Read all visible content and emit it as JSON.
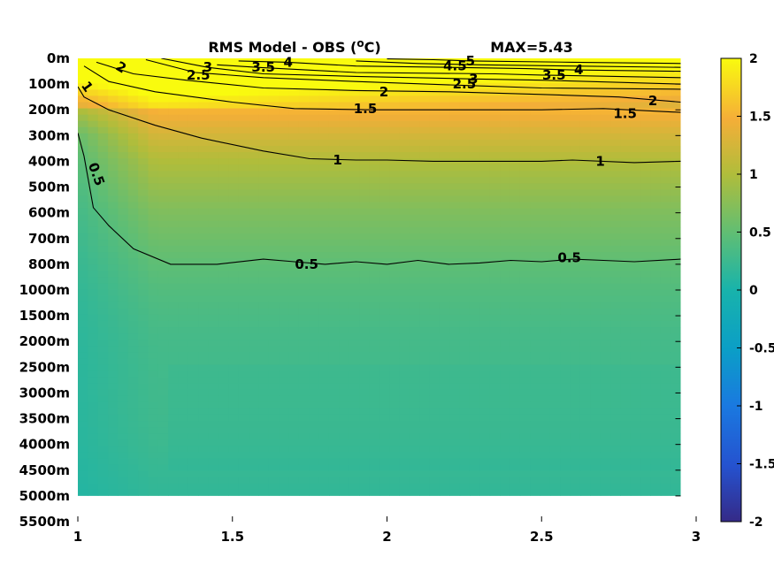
{
  "chart_data": {
    "type": "heatmap",
    "title": "RMS Model - OBS (",
    "title_sup": "o",
    "title_unit": "C)",
    "max_label": "MAX=5.43",
    "x_ticks": [
      "1",
      "1.5",
      "2",
      "2.5",
      "3"
    ],
    "x_tick_values": [
      1,
      1.5,
      2,
      2.5,
      3
    ],
    "xlim": [
      1,
      3
    ],
    "x_data_range": [
      1,
      2.95
    ],
    "y_ticks": [
      "0m",
      "100m",
      "200m",
      "300m",
      "400m",
      "500m",
      "600m",
      "700m",
      "800m",
      "1000m",
      "1500m",
      "2000m",
      "2500m",
      "3000m",
      "3500m",
      "4000m",
      "4500m",
      "5000m",
      "5500m"
    ],
    "y_data_range_index": [
      0,
      17
    ],
    "colorbar": {
      "ticks": [
        "2",
        "1.5",
        "1",
        "0.5",
        "0",
        "-0.5",
        "-1",
        "-1.5",
        "-2"
      ],
      "tick_values": [
        2,
        1.5,
        1,
        0.5,
        0,
        -0.5,
        -1,
        -1.5,
        -2
      ],
      "range": [
        -2,
        2
      ],
      "colormap": "parula"
    },
    "contours": [
      {
        "level": "0.5",
        "points": [
          [
            1,
            2.9
          ],
          [
            1.02,
            3.8
          ],
          [
            1.05,
            5.8
          ],
          [
            1.1,
            6.5
          ],
          [
            1.18,
            7.4
          ],
          [
            1.3,
            8.0
          ],
          [
            1.45,
            8.0
          ],
          [
            1.6,
            7.8
          ],
          [
            1.7,
            7.9
          ],
          [
            1.8,
            8.0
          ],
          [
            1.9,
            7.9
          ],
          [
            2.0,
            8.0
          ],
          [
            2.1,
            7.85
          ],
          [
            2.2,
            8.0
          ],
          [
            2.3,
            7.95
          ],
          [
            2.4,
            7.85
          ],
          [
            2.5,
            7.9
          ],
          [
            2.6,
            7.8
          ],
          [
            2.7,
            7.85
          ],
          [
            2.8,
            7.9
          ],
          [
            2.95,
            7.8
          ]
        ],
        "labels": [
          [
            1.06,
            4.5,
            "0.5",
            70
          ],
          [
            1.74,
            8.0,
            "0.5",
            0
          ],
          [
            2.59,
            7.75,
            "0.5",
            0
          ]
        ]
      },
      {
        "level": "1",
        "points": [
          [
            1,
            1.1
          ],
          [
            1.02,
            1.5
          ],
          [
            1.1,
            2.0
          ],
          [
            1.25,
            2.6
          ],
          [
            1.4,
            3.1
          ],
          [
            1.6,
            3.6
          ],
          [
            1.75,
            3.9
          ],
          [
            1.9,
            3.95
          ],
          [
            2.0,
            3.95
          ],
          [
            2.15,
            4.0
          ],
          [
            2.3,
            4.0
          ],
          [
            2.5,
            4.0
          ],
          [
            2.6,
            3.95
          ],
          [
            2.8,
            4.05
          ],
          [
            2.95,
            4.0
          ]
        ],
        "labels": [
          [
            1.03,
            1.1,
            "1",
            55
          ],
          [
            1.84,
            3.95,
            "1",
            0
          ],
          [
            2.69,
            4.0,
            "1",
            0
          ]
        ]
      },
      {
        "level": "1.5",
        "points": [
          [
            1.02,
            0.3
          ],
          [
            1.1,
            0.9
          ],
          [
            1.25,
            1.3
          ],
          [
            1.5,
            1.7
          ],
          [
            1.7,
            1.95
          ],
          [
            1.95,
            2.0
          ],
          [
            2.2,
            2.0
          ],
          [
            2.5,
            2.0
          ],
          [
            2.7,
            1.95
          ],
          [
            2.95,
            2.1
          ]
        ],
        "labels": [
          [
            1.93,
            1.95,
            "1.5",
            0
          ],
          [
            2.77,
            2.15,
            "1.5",
            0
          ]
        ]
      },
      {
        "level": "2",
        "points": [
          [
            1.06,
            0.15
          ],
          [
            1.18,
            0.6
          ],
          [
            1.35,
            0.85
          ],
          [
            1.6,
            1.15
          ],
          [
            1.9,
            1.25
          ],
          [
            2.2,
            1.3
          ],
          [
            2.5,
            1.4
          ],
          [
            2.75,
            1.5
          ],
          [
            2.95,
            1.7
          ]
        ],
        "labels": [
          [
            1.14,
            0.35,
            "2",
            30
          ],
          [
            1.99,
            1.3,
            "2",
            0
          ],
          [
            2.86,
            1.65,
            "2",
            0
          ]
        ]
      },
      {
        "level": "2.5",
        "points": [
          [
            1.22,
            0.05
          ],
          [
            1.38,
            0.55
          ],
          [
            1.6,
            0.75
          ],
          [
            1.9,
            0.9
          ],
          [
            2.25,
            1.05
          ],
          [
            2.5,
            1.15
          ],
          [
            2.95,
            1.2
          ]
        ],
        "labels": [
          [
            1.39,
            0.65,
            "2.5",
            0
          ],
          [
            2.25,
            1.0,
            "2.5",
            0
          ]
        ]
      },
      {
        "level": "3",
        "points": [
          [
            1.27,
            0.0
          ],
          [
            1.42,
            0.35
          ],
          [
            1.6,
            0.6
          ],
          [
            1.9,
            0.7
          ],
          [
            2.28,
            0.8
          ],
          [
            2.5,
            0.85
          ],
          [
            2.95,
            1.0
          ]
        ],
        "labels": [
          [
            1.42,
            0.35,
            "3",
            0
          ],
          [
            2.28,
            0.8,
            "3",
            0
          ]
        ]
      },
      {
        "level": "3.5",
        "points": [
          [
            1.45,
            0.25
          ],
          [
            1.58,
            0.35
          ],
          [
            1.9,
            0.55
          ],
          [
            2.35,
            0.6
          ],
          [
            2.5,
            0.65
          ],
          [
            2.95,
            0.75
          ]
        ],
        "labels": [
          [
            1.6,
            0.35,
            "3.5",
            0
          ],
          [
            2.54,
            0.65,
            "3.5",
            0
          ]
        ]
      },
      {
        "level": "4",
        "points": [
          [
            1.52,
            0.1
          ],
          [
            1.68,
            0.15
          ],
          [
            1.9,
            0.3
          ],
          [
            2.2,
            0.35
          ],
          [
            2.45,
            0.4
          ],
          [
            2.6,
            0.45
          ],
          [
            2.95,
            0.5
          ]
        ],
        "labels": [
          [
            1.68,
            0.15,
            "4",
            0
          ],
          [
            2.62,
            0.45,
            "4",
            0
          ]
        ]
      },
      {
        "level": "4.5",
        "points": [
          [
            1.9,
            0.1
          ],
          [
            2.1,
            0.2
          ],
          [
            2.3,
            0.25
          ],
          [
            2.6,
            0.3
          ],
          [
            2.95,
            0.35
          ]
        ],
        "labels": [
          [
            2.22,
            0.3,
            "4.5",
            0
          ]
        ]
      },
      {
        "level": "5",
        "points": [
          [
            2.0,
            0.02
          ],
          [
            2.15,
            0.05
          ],
          [
            2.27,
            0.1
          ],
          [
            2.6,
            0.15
          ],
          [
            2.95,
            0.2
          ]
        ],
        "labels": [
          [
            2.27,
            0.1,
            "5",
            0
          ]
        ]
      }
    ],
    "field_profile": {
      "description_levels": [
        0,
        1,
        2,
        3,
        4,
        5,
        6,
        7,
        8,
        9,
        10,
        11,
        12,
        13,
        14,
        15,
        16,
        17
      ],
      "values_mid": [
        2.4,
        2.0,
        1.55,
        1.25,
        1.0,
        0.85,
        0.7,
        0.6,
        0.5,
        0.42,
        0.36,
        0.32,
        0.3,
        0.29,
        0.28,
        0.26,
        0.22,
        0.18
      ]
    }
  }
}
